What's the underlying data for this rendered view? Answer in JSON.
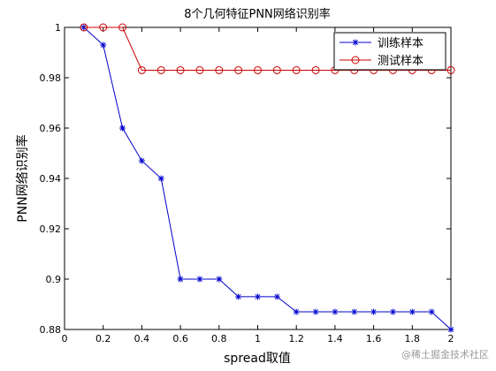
{
  "chart_data": {
    "type": "line",
    "title": "8个几何特征PNN网络识别率",
    "xlabel": "spread取值",
    "ylabel": "PNN网络识别率",
    "xlim": [
      0,
      2
    ],
    "ylim": [
      0.88,
      1
    ],
    "xticks": [
      0,
      0.2,
      0.4,
      0.6,
      0.8,
      1,
      1.2,
      1.4,
      1.6,
      1.8,
      2
    ],
    "xtick_labels": [
      "0",
      "0.2",
      "0.4",
      "0.6",
      "0.8",
      "1",
      "1.2",
      "1.4",
      "1.6",
      "1.8",
      "2"
    ],
    "yticks": [
      0.88,
      0.9,
      0.92,
      0.94,
      0.96,
      0.98,
      1
    ],
    "ytick_labels": [
      "0.88",
      "0.9",
      "0.92",
      "0.94",
      "0.96",
      "0.98",
      "1"
    ],
    "grid": false,
    "legend_position": "top-right",
    "x": [
      0.1,
      0.2,
      0.3,
      0.4,
      0.5,
      0.6,
      0.7,
      0.8,
      0.9,
      1.0,
      1.1,
      1.2,
      1.3,
      1.4,
      1.5,
      1.6,
      1.7,
      1.8,
      1.9,
      2.0
    ],
    "series": [
      {
        "name": "训练样本",
        "color": "#0000cc",
        "marker": "asterisk",
        "values": [
          1,
          0.993,
          0.96,
          0.947,
          0.94,
          0.9,
          0.9,
          0.9,
          0.893,
          0.893,
          0.893,
          0.887,
          0.887,
          0.887,
          0.887,
          0.887,
          0.887,
          0.887,
          0.887,
          0.88
        ]
      },
      {
        "name": "测试样本",
        "color": "#cc0000",
        "marker": "circle",
        "values": [
          1,
          1,
          1,
          0.983,
          0.983,
          0.983,
          0.983,
          0.983,
          0.983,
          0.983,
          0.983,
          0.983,
          0.983,
          0.983,
          0.983,
          0.983,
          0.983,
          0.983,
          0.983,
          0.983
        ]
      }
    ]
  },
  "watermark": "@稀土掘金技术社区"
}
